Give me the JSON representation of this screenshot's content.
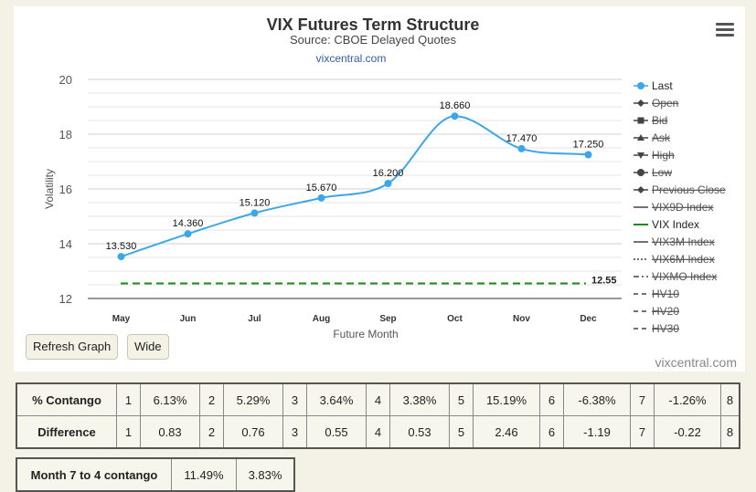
{
  "chart": {
    "title": "VIX Futures Term Structure",
    "subtitle": "Source: CBOE Delayed Quotes",
    "link": "vixcentral.com",
    "credits": "vixcentral.com",
    "vix_label": "12.55"
  },
  "buttons": {
    "refresh": "Refresh Graph",
    "wide": "Wide"
  },
  "chart_data": {
    "type": "line",
    "categories": [
      "May",
      "Jun",
      "Jul",
      "Aug",
      "Sep",
      "Oct",
      "Nov",
      "Dec"
    ],
    "series": [
      {
        "name": "Last",
        "values": [
          13.53,
          14.36,
          15.12,
          15.67,
          16.2,
          18.66,
          17.47,
          17.25
        ],
        "labels": [
          "13.530",
          "14.360",
          "15.120",
          "15.670",
          "16.200",
          "18.660",
          "17.470",
          "17.250"
        ],
        "color": "#3ba7e8"
      },
      {
        "name": "VIX Index",
        "values": [
          12.55,
          12.55,
          12.55,
          12.55,
          12.55,
          12.55,
          12.55,
          12.55
        ],
        "color": "#1a8a1a",
        "dashed": true
      }
    ],
    "xlabel": "Future Month",
    "ylabel": "Volatility",
    "ylim": [
      12,
      20
    ],
    "yticks": [
      "12",
      "14",
      "16",
      "18",
      "20"
    ],
    "grid": true,
    "legend_position": "right",
    "legend": [
      {
        "name": "Last",
        "symbol": "circle",
        "enabled": true
      },
      {
        "name": "Open",
        "symbol": "diamond",
        "enabled": false
      },
      {
        "name": "Bid",
        "symbol": "square",
        "enabled": false
      },
      {
        "name": "Ask",
        "symbol": "triangle",
        "enabled": false
      },
      {
        "name": "High",
        "symbol": "triangle-down",
        "enabled": false
      },
      {
        "name": "Low",
        "symbol": "circle",
        "enabled": false
      },
      {
        "name": "Previous Close",
        "symbol": "diamond",
        "enabled": false
      },
      {
        "name": "VIX9D Index",
        "symbol": "line",
        "enabled": false
      },
      {
        "name": "VIX Index",
        "symbol": "line-green",
        "enabled": true
      },
      {
        "name": "VIX3M Index",
        "symbol": "line",
        "enabled": false
      },
      {
        "name": "VIX6M Index",
        "symbol": "dots",
        "enabled": false
      },
      {
        "name": "VIXMO Index",
        "symbol": "dashdot",
        "enabled": false
      },
      {
        "name": "HV10",
        "symbol": "dash",
        "enabled": false
      },
      {
        "name": "HV20",
        "symbol": "dash",
        "enabled": false
      },
      {
        "name": "HV30",
        "symbol": "dash",
        "enabled": false
      }
    ]
  },
  "contango_table": {
    "rows": [
      {
        "label": "% Contango",
        "cells": [
          "1",
          "6.13%",
          "2",
          "5.29%",
          "3",
          "3.64%",
          "4",
          "3.38%",
          "5",
          "15.19%",
          "6",
          "-6.38%",
          "7",
          "-1.26%",
          "8"
        ]
      },
      {
        "label": "Difference",
        "cells": [
          "1",
          "0.83",
          "2",
          "0.76",
          "3",
          "0.55",
          "4",
          "0.53",
          "5",
          "2.46",
          "6",
          "-1.19",
          "7",
          "-0.22",
          "8"
        ]
      }
    ]
  },
  "month_table": {
    "label": "Month 7 to 4 contango",
    "values": [
      "11.49%",
      "3.83%"
    ]
  }
}
